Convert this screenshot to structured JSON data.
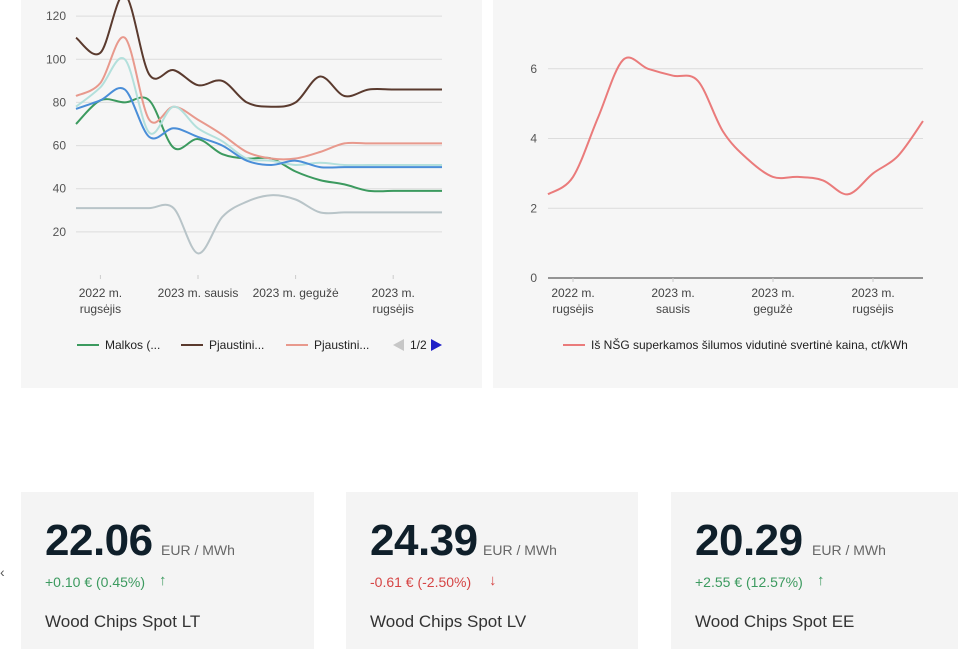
{
  "chart_data": [
    {
      "type": "line",
      "x": [
        "2022-08",
        "2022-09",
        "2022-10",
        "2022-11",
        "2022-12",
        "2023-01",
        "2023-02",
        "2023-03",
        "2023-04",
        "2023-05",
        "2023-06",
        "2023-07",
        "2023-08",
        "2023-09",
        "2023-10",
        "2023-11"
      ],
      "x_tick_labels": [
        [
          "2022 m.",
          "rugsėjis"
        ],
        [
          "2023 m. sausis"
        ],
        [
          "2023 m. gegužė"
        ],
        [
          "2023 m.",
          "rugsėjis"
        ]
      ],
      "x_tick_values": [
        "2022-09",
        "2023-01",
        "2023-05",
        "2023-09"
      ],
      "y_tick_labels": [
        "20",
        "40",
        "60",
        "80",
        "100",
        "120"
      ],
      "ylim": [
        0,
        140
      ],
      "grid": true,
      "legend": {
        "position": "bottom",
        "page": "1/2"
      },
      "series": [
        {
          "name": "Malkos (...",
          "color": "#3c9a5f",
          "values": [
            70,
            81,
            80,
            81,
            59,
            63,
            56,
            54,
            54,
            48,
            44,
            42,
            39,
            39,
            39,
            39
          ]
        },
        {
          "name": "Pjaustini...",
          "color": "#5a3a2e",
          "values": [
            110,
            103,
            130,
            93,
            95,
            88,
            90,
            80,
            78,
            80,
            92,
            83,
            86,
            86,
            86,
            86
          ]
        },
        {
          "name": "Pjaustini...",
          "color": "#e8998d",
          "values": [
            83,
            89,
            110,
            72,
            78,
            72,
            65,
            57,
            54,
            54,
            57,
            61,
            61,
            61,
            61,
            61
          ]
        },
        {
          "name": "",
          "color": "#b3e0dc",
          "values": [
            78,
            87,
            100,
            66,
            78,
            68,
            62,
            54,
            53,
            51,
            52,
            51,
            51,
            51,
            51,
            51
          ]
        },
        {
          "name": "",
          "color": "#4a8ed8",
          "values": [
            77,
            81,
            86,
            64,
            68,
            64,
            60,
            53,
            51,
            53,
            50,
            50,
            50,
            50,
            50,
            50
          ]
        },
        {
          "name": "",
          "color": "#b8c4c8",
          "values": [
            31,
            31,
            31,
            31,
            31,
            10,
            27,
            34,
            37,
            35,
            29,
            29,
            29,
            29,
            29,
            29
          ]
        }
      ]
    },
    {
      "type": "line",
      "x": [
        "2022-08",
        "2022-09",
        "2022-10",
        "2022-11",
        "2022-12",
        "2023-01",
        "2023-02",
        "2023-03",
        "2023-04",
        "2023-05",
        "2023-06",
        "2023-07",
        "2023-08",
        "2023-09",
        "2023-10",
        "2023-11"
      ],
      "x_tick_labels": [
        [
          "2022 m.",
          "rugsėjis"
        ],
        [
          "2023 m.",
          "sausis"
        ],
        [
          "2023 m.",
          "gegužė"
        ],
        [
          "2023 m.",
          "rugsėjis"
        ]
      ],
      "x_tick_values": [
        "2022-09",
        "2023-01",
        "2023-05",
        "2023-09"
      ],
      "y_tick_labels": [
        "0",
        "2",
        "4",
        "6"
      ],
      "ylim": [
        0,
        8
      ],
      "grid": true,
      "legend": {
        "position": "bottom"
      },
      "series": [
        {
          "name": "Iš NŠG superkamos šilumos vidutinė svertinė kaina, ct/kWh",
          "color": "#ea7b7b",
          "values": [
            2.4,
            2.9,
            4.6,
            6.25,
            6.0,
            5.8,
            5.65,
            4.2,
            3.4,
            2.9,
            2.9,
            2.8,
            2.4,
            3.0,
            3.5,
            4.5
          ]
        }
      ]
    }
  ],
  "cards": [
    {
      "price": "22.06",
      "unit": "EUR / MWh",
      "change": "+0.10 € (0.45%)",
      "direction": "up",
      "arrow": "↑",
      "name": "Wood Chips Spot LT"
    },
    {
      "price": "24.39",
      "unit": "EUR / MWh",
      "change": "-0.61 € (-2.50%)",
      "direction": "down",
      "arrow": "↓",
      "name": "Wood Chips Spot LV"
    },
    {
      "price": "20.29",
      "unit": "EUR / MWh",
      "change": "+2.55 € (12.57%)",
      "direction": "up",
      "arrow": "↑",
      "name": "Wood Chips Spot EE"
    }
  ],
  "icons": {
    "legend_prev": "triangle-left-icon",
    "legend_next": "triangle-right-icon"
  }
}
